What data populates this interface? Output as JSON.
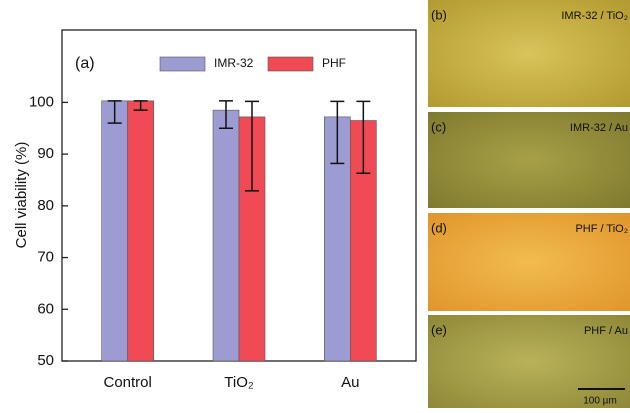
{
  "chart_data": {
    "type": "bar",
    "panel_label": "(a)",
    "ylabel": "Cell viability  (%)",
    "categories": [
      "Control",
      "TiO₂",
      "Au"
    ],
    "series": [
      {
        "name": "IMR-32",
        "color": "#9c9cd2",
        "values": [
          100.3,
          98.5,
          97.2
        ],
        "err_low": [
          4.3,
          3.5,
          9.0
        ],
        "err_high": [
          0,
          1.8,
          3.0
        ]
      },
      {
        "name": "PHF",
        "color": "#f04a55",
        "values": [
          100.3,
          97.2,
          96.5
        ],
        "err_low": [
          1.8,
          14.3,
          10.2
        ],
        "err_high": [
          0,
          3.0,
          3.7
        ]
      }
    ],
    "ylim": [
      50,
      114
    ],
    "yticks": [
      50,
      60,
      70,
      80,
      90,
      100
    ],
    "grid": false
  },
  "panels": [
    {
      "label": "(b)",
      "caption": "IMR-32 / TiO₂"
    },
    {
      "label": "(c)",
      "caption": "IMR-32 / Au"
    },
    {
      "label": "(d)",
      "caption": "PHF / TiO₂"
    },
    {
      "label": "(e)",
      "caption": "PHF / Au",
      "scale": "100 µm"
    }
  ]
}
